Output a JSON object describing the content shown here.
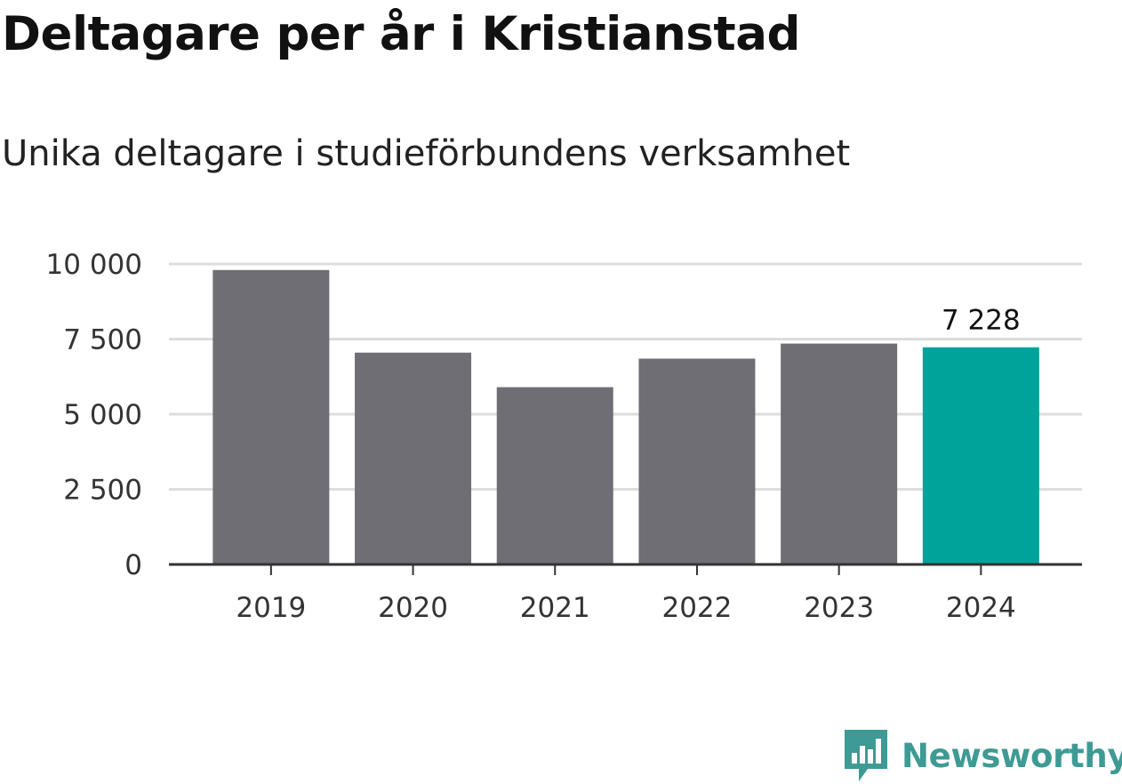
{
  "title": "Deltagare per år i Kristianstad",
  "subtitle": "Unika deltagare i studieförbundens verksamhet",
  "chart_data": {
    "type": "bar",
    "categories": [
      "2019",
      "2020",
      "2021",
      "2022",
      "2023",
      "2024"
    ],
    "values": [
      9800,
      7050,
      5900,
      6850,
      7350,
      7228
    ],
    "ylim": [
      0,
      10000
    ],
    "yticks": [
      0,
      2500,
      5000,
      7500,
      10000
    ],
    "ytick_labels": [
      "0",
      "2 500",
      "5 000",
      "7 500",
      "10 000"
    ],
    "data_labels": {
      "2024": "7 228"
    },
    "grid": true,
    "colors": {
      "default_bar": "#6f6e75",
      "highlight_bar": "#00a39a",
      "gridline": "#dddddd",
      "axis": "#333333"
    }
  },
  "brand": {
    "name": "Newsworthy",
    "icon": "newsworthy-logo-icon",
    "color": "#3e9a94"
  }
}
